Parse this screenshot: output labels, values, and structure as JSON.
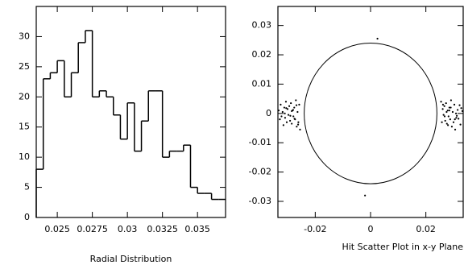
{
  "chart_data": [
    {
      "type": "histogram",
      "xlabel": "Radial Distribution",
      "bins": [
        0.0235,
        0.024,
        0.0245,
        0.025,
        0.0255,
        0.026,
        0.0265,
        0.027,
        0.0275,
        0.028,
        0.0285,
        0.029,
        0.0295,
        0.03,
        0.0305,
        0.031,
        0.0315,
        0.032,
        0.0325,
        0.033,
        0.0335,
        0.034,
        0.0345,
        0.035,
        0.0355,
        0.036,
        0.0365,
        0.037
      ],
      "values": [
        8,
        23,
        24,
        26,
        20,
        24,
        29,
        31,
        20,
        21,
        20,
        17,
        13,
        19,
        11,
        16,
        21,
        21,
        10,
        11,
        11,
        12,
        5,
        4,
        4,
        3,
        3
      ],
      "xlim": [
        0.0235,
        0.037
      ],
      "xticks": [
        0.025,
        0.0275,
        0.03,
        0.0325,
        0.035
      ],
      "ylim": [
        0,
        35
      ],
      "yticks": [
        0,
        5,
        10,
        15,
        20,
        25,
        30
      ],
      "color": "#000000"
    },
    {
      "type": "scatter",
      "xlabel": "Hit Scatter Plot in x-y Plane",
      "x": [
        -0.0332,
        -0.0328,
        -0.0325,
        -0.0322,
        -0.0318,
        -0.0315,
        -0.0312,
        -0.0309,
        -0.0306,
        -0.0303,
        -0.03,
        -0.0297,
        -0.0294,
        -0.0291,
        -0.0288,
        -0.0285,
        -0.0282,
        -0.0279,
        -0.0276,
        -0.0273,
        -0.027,
        -0.0267,
        -0.0264,
        -0.0261,
        -0.0258,
        -0.0255,
        -0.031,
        -0.029,
        -0.028,
        -0.0275,
        -0.0268,
        -0.0262,
        -0.0305,
        -0.0285,
        0.0332,
        0.0328,
        0.0325,
        0.0322,
        0.0318,
        0.0315,
        0.0312,
        0.0309,
        0.0306,
        0.0303,
        0.03,
        0.0297,
        0.0294,
        0.0291,
        0.0288,
        0.0285,
        0.0282,
        0.0279,
        0.0276,
        0.0273,
        0.027,
        0.0267,
        0.0264,
        0.0261,
        0.0258,
        0.0255,
        0.031,
        0.029,
        0.028,
        0.0275,
        0.0268,
        0.0262,
        0.0305,
        0.0285,
        0.0025,
        -0.002
      ],
      "y": [
        0.001,
        -0.002,
        0.003,
        -0.001,
        0.0005,
        -0.004,
        0.002,
        -0.0015,
        0.004,
        -0.003,
        0.0015,
        -0.0005,
        0.0025,
        -0.0025,
        0.0035,
        -0.0035,
        0.001,
        -0.001,
        0.002,
        -0.002,
        0.0045,
        -0.0045,
        0.0005,
        -0.003,
        0.003,
        -0.0055,
        0.0,
        -0.0008,
        0.0012,
        -0.0018,
        0.0028,
        -0.0038,
        0.0018,
        0.0008,
        0.0008,
        0.0018,
        -0.0038,
        0.0028,
        -0.0018,
        0.0012,
        -0.0008,
        0.0,
        -0.0055,
        0.003,
        -0.003,
        0.0005,
        -0.0045,
        0.0045,
        -0.002,
        0.002,
        -0.001,
        0.001,
        -0.0035,
        0.0035,
        -0.0025,
        0.0025,
        -0.0005,
        0.0015,
        -0.003,
        0.004,
        -0.0015,
        0.002,
        -0.004,
        0.0005,
        -0.001,
        0.003,
        -0.002,
        0.001,
        0.0255,
        -0.028
      ],
      "circle_radius": 0.024,
      "xlim": [
        -0.0335,
        0.0335
      ],
      "xticks": [
        -0.02,
        0,
        0.02
      ],
      "ylim": [
        -0.0355,
        0.0365
      ],
      "yticks": [
        -0.03,
        -0.02,
        -0.01,
        0,
        0.01,
        0.02,
        0.03
      ],
      "color": "#000000"
    }
  ]
}
